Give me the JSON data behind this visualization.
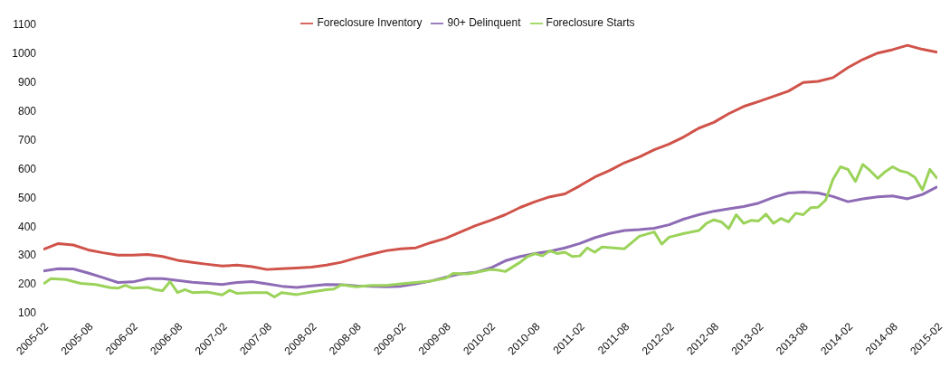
{
  "chart_data": {
    "type": "line",
    "legend": "top",
    "grid": false,
    "marker": "none",
    "line_style": "solid",
    "xlim": [
      "2005-02",
      "2015-02"
    ],
    "xticks": [
      "2005-02",
      "2005-08",
      "2006-02",
      "2006-08",
      "2007-02",
      "2007-08",
      "2008-02",
      "2008-08",
      "2009-02",
      "2009-08",
      "2010-02",
      "2010-08",
      "2011-02",
      "2011-08",
      "2012-02",
      "2012-08",
      "2013-02",
      "2013-08",
      "2014-02",
      "2014-08",
      "2015-02"
    ],
    "ylim": [
      100,
      1100
    ],
    "yticks": [
      100,
      200,
      300,
      400,
      500,
      600,
      700,
      800,
      900,
      1000,
      1100
    ],
    "series": [
      {
        "name": "Foreclosure Inventory",
        "color": "#d0534a",
        "x": [
          "2005-02",
          "2005-04",
          "2005-06",
          "2005-08",
          "2005-10",
          "2005-12",
          "2006-02",
          "2006-04",
          "2006-06",
          "2006-08",
          "2006-10",
          "2006-12",
          "2007-02",
          "2007-04",
          "2007-06",
          "2007-08",
          "2007-10",
          "2007-12",
          "2008-02",
          "2008-04",
          "2008-06",
          "2008-08",
          "2008-10",
          "2008-12",
          "2009-02",
          "2009-04",
          "2009-06",
          "2009-08",
          "2009-10",
          "2009-12",
          "2010-02",
          "2010-04",
          "2010-06",
          "2010-08",
          "2010-10",
          "2010-12",
          "2011-02",
          "2011-04",
          "2011-06",
          "2011-08",
          "2011-10",
          "2011-12",
          "2012-02",
          "2012-04",
          "2012-06",
          "2012-08",
          "2012-10",
          "2012-12",
          "2013-02",
          "2013-04",
          "2013-06",
          "2013-08",
          "2013-10",
          "2013-12",
          "2014-02",
          "2014-04",
          "2014-06",
          "2014-08",
          "2014-10",
          "2014-12",
          "2015-02"
        ],
        "values": [
          320,
          340,
          335,
          318,
          308,
          300,
          300,
          302,
          295,
          282,
          275,
          268,
          262,
          265,
          260,
          250,
          253,
          255,
          258,
          265,
          275,
          290,
          303,
          315,
          322,
          325,
          343,
          358,
          380,
          402,
          420,
          440,
          465,
          485,
          502,
          512,
          540,
          570,
          593,
          620,
          640,
          665,
          685,
          710,
          740,
          760,
          790,
          815,
          832,
          850,
          868,
          898,
          902,
          915,
          950,
          978,
          1000,
          1012,
          1027,
          1013,
          1003
        ]
      },
      {
        "name": "90+ Delinquent",
        "color": "#8e6bb5",
        "x": [
          "2005-02",
          "2005-04",
          "2005-06",
          "2005-08",
          "2005-10",
          "2005-12",
          "2006-02",
          "2006-04",
          "2006-06",
          "2006-08",
          "2006-10",
          "2006-12",
          "2007-02",
          "2007-04",
          "2007-06",
          "2007-08",
          "2007-10",
          "2007-12",
          "2008-02",
          "2008-04",
          "2008-06",
          "2008-08",
          "2008-10",
          "2008-12",
          "2009-02",
          "2009-04",
          "2009-06",
          "2009-08",
          "2009-10",
          "2009-12",
          "2010-02",
          "2010-04",
          "2010-06",
          "2010-08",
          "2010-10",
          "2010-12",
          "2011-02",
          "2011-04",
          "2011-06",
          "2011-08",
          "2011-10",
          "2011-12",
          "2012-02",
          "2012-04",
          "2012-06",
          "2012-08",
          "2012-10",
          "2012-12",
          "2013-02",
          "2013-04",
          "2013-06",
          "2013-08",
          "2013-10",
          "2013-12",
          "2014-02",
          "2014-04",
          "2014-06",
          "2014-08",
          "2014-10",
          "2014-12",
          "2015-02"
        ],
        "values": [
          245,
          253,
          252,
          238,
          222,
          205,
          207,
          218,
          218,
          212,
          206,
          202,
          198,
          205,
          208,
          200,
          192,
          188,
          193,
          198,
          197,
          193,
          192,
          190,
          192,
          200,
          210,
          223,
          235,
          240,
          255,
          280,
          295,
          305,
          313,
          325,
          340,
          360,
          375,
          385,
          388,
          393,
          405,
          425,
          440,
          452,
          460,
          468,
          480,
          500,
          515,
          518,
          515,
          503,
          485,
          495,
          502,
          505,
          495,
          510,
          537
        ]
      },
      {
        "name": "Foreclosure Starts",
        "color": "#9bd35a",
        "x": [
          "2005-02",
          "2005-03",
          "2005-05",
          "2005-07",
          "2005-09",
          "2005-11",
          "2005-12",
          "2006-01",
          "2006-02",
          "2006-04",
          "2006-05",
          "2006-06",
          "2006-07",
          "2006-08",
          "2006-09",
          "2006-10",
          "2006-12",
          "2007-02",
          "2007-03",
          "2007-04",
          "2007-06",
          "2007-08",
          "2007-09",
          "2007-10",
          "2007-12",
          "2008-02",
          "2008-04",
          "2008-05",
          "2008-06",
          "2008-08",
          "2008-10",
          "2008-12",
          "2009-02",
          "2009-04",
          "2009-06",
          "2009-08",
          "2009-09",
          "2009-11",
          "2010-01",
          "2010-02",
          "2010-03",
          "2010-04",
          "2010-06",
          "2010-07",
          "2010-08",
          "2010-09",
          "2010-10",
          "2010-11",
          "2010-12",
          "2011-01",
          "2011-02",
          "2011-03",
          "2011-04",
          "2011-05",
          "2011-08",
          "2011-10",
          "2011-12",
          "2012-01",
          "2012-02",
          "2012-04",
          "2012-06",
          "2012-07",
          "2012-08",
          "2012-09",
          "2012-10",
          "2012-11",
          "2012-12",
          "2013-01",
          "2013-02",
          "2013-03",
          "2013-04",
          "2013-05",
          "2013-06",
          "2013-07",
          "2013-08",
          "2013-09",
          "2013-10",
          "2013-11",
          "2013-12",
          "2014-01",
          "2014-02",
          "2014-03",
          "2014-04",
          "2014-05",
          "2014-06",
          "2014-07",
          "2014-08",
          "2014-09",
          "2014-10",
          "2014-11",
          "2014-12",
          "2015-01",
          "2015-02"
        ],
        "values": [
          200,
          218,
          215,
          202,
          198,
          187,
          185,
          195,
          185,
          188,
          180,
          177,
          208,
          170,
          180,
          170,
          172,
          162,
          178,
          167,
          170,
          170,
          155,
          170,
          163,
          172,
          180,
          182,
          197,
          190,
          195,
          195,
          200,
          205,
          210,
          220,
          236,
          235,
          245,
          250,
          248,
          243,
          275,
          295,
          305,
          297,
          315,
          305,
          310,
          295,
          297,
          325,
          310,
          328,
          322,
          365,
          380,
          338,
          362,
          375,
          385,
          410,
          422,
          415,
          392,
          440,
          410,
          420,
          418,
          442,
          410,
          427,
          415,
          445,
          440,
          464,
          466,
          490,
          563,
          606,
          597,
          555,
          614,
          592,
          566,
          589,
          606,
          592,
          586,
          569,
          526,
          597,
          565
        ]
      }
    ]
  }
}
